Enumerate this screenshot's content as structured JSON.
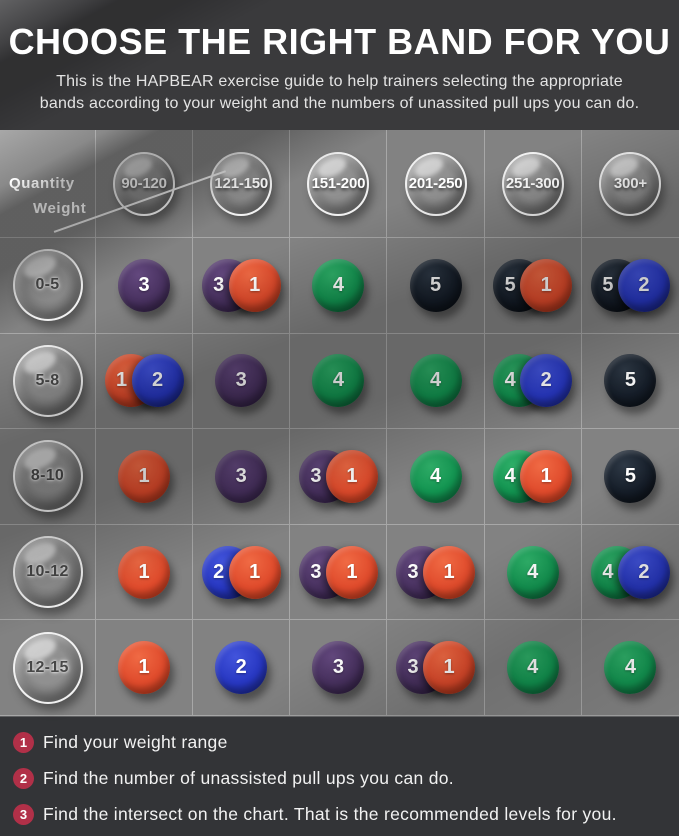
{
  "header": {
    "title": "CHOOSE THE RIGHT BAND FOR YOU",
    "subtitle_line1": "This is the HAPBEAR exercise guide to help trainers selecting the appropriate",
    "subtitle_line2": "bands according to your weight and the numbers of unassited pull ups you can do."
  },
  "table": {
    "corner_quantity": "Quantity",
    "corner_weight": "Weight"
  },
  "chart_data": {
    "type": "table",
    "title": "CHOOSE THE RIGHT BAND FOR YOU",
    "columns_axis_label": "Weight",
    "rows_axis_label": "Quantity",
    "columns": [
      "90-120",
      "121-150",
      "151-200",
      "201-250",
      "251-300",
      "300+"
    ],
    "rows": [
      "0-5",
      "5-8",
      "8-10",
      "10-12",
      "12-15"
    ],
    "values": [
      [
        [
          3
        ],
        [
          3,
          1
        ],
        [
          4
        ],
        [
          5
        ],
        [
          5,
          1
        ],
        [
          5,
          2
        ]
      ],
      [
        [
          1,
          2
        ],
        [
          3
        ],
        [
          4
        ],
        [
          4
        ],
        [
          4,
          2
        ],
        [
          5
        ]
      ],
      [
        [
          1
        ],
        [
          3
        ],
        [
          3,
          1
        ],
        [
          4
        ],
        [
          4,
          1
        ],
        [
          5
        ]
      ],
      [
        [
          1
        ],
        [
          2,
          1
        ],
        [
          3,
          1
        ],
        [
          3,
          1
        ],
        [
          4
        ],
        [
          4,
          2
        ]
      ],
      [
        [
          1
        ],
        [
          2
        ],
        [
          3
        ],
        [
          3,
          1
        ],
        [
          4
        ],
        [
          4
        ]
      ]
    ]
  },
  "band_colors": {
    "1": {
      "base": "#df4a2b",
      "light": "#f06a44",
      "dark": "#a93015"
    },
    "2": {
      "base": "#2737c1",
      "light": "#4254dc",
      "dark": "#141f78"
    },
    "3": {
      "base": "#48315f",
      "light": "#63487e",
      "dark": "#2e1d41"
    },
    "4": {
      "base": "#129350",
      "light": "#2fb069",
      "dark": "#0a5c33"
    },
    "5": {
      "base": "#151d28",
      "light": "#2e3946",
      "dark": "#070b10"
    }
  },
  "legend": {
    "steps": [
      {
        "num": "1",
        "text": "Find your weight range"
      },
      {
        "num": "2",
        "text": "Find the number of unassisted pull ups you can do."
      },
      {
        "num": "3",
        "text": "Find the intersect on the chart. That is the recommended levels for you."
      }
    ]
  },
  "colors": {
    "legend_badge": "#b13048",
    "header_bg": "#3a3a3c",
    "table_bg": "#828282",
    "footer_bg": "#333437"
  }
}
